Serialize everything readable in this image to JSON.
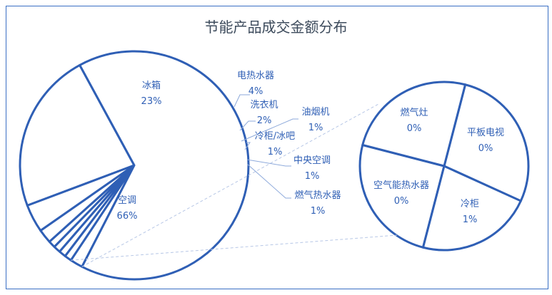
{
  "chart_data": {
    "type": "pie",
    "subtype": "pie-of-pie",
    "title": "节能产品成交金额分布",
    "colors": {
      "stroke": "#2f5fb5",
      "fill": "#ffffff",
      "label": "#2f5fb5",
      "leader": "#8eaadb"
    },
    "primary": [
      {
        "name": "冰箱",
        "value": 23,
        "label": "23%"
      },
      {
        "name": "电热水器",
        "value": 4,
        "label": "4%"
      },
      {
        "name": "洗衣机",
        "value": 2,
        "label": "2%"
      },
      {
        "name": "油烟机",
        "value": 1,
        "label": "1%"
      },
      {
        "name": "冷柜/冰吧",
        "value": 1,
        "label": "1%"
      },
      {
        "name": "中央空调",
        "value": 1,
        "label": "1%"
      },
      {
        "name": "燃气热水器",
        "value": 1,
        "label": "1%"
      },
      {
        "name": "",
        "value": 1.8,
        "label": ""
      },
      {
        "name": "空调",
        "value": 66,
        "label": "66%"
      }
    ],
    "secondary": [
      {
        "name": "燃气灶",
        "value": 0.45,
        "label": "0%"
      },
      {
        "name": "平板电视",
        "value": 0.4,
        "label": "0%"
      },
      {
        "name": "冷柜",
        "value": 0.5,
        "label": "1%"
      },
      {
        "name": "空气能热水器",
        "value": 0.45,
        "label": "0%"
      }
    ]
  }
}
